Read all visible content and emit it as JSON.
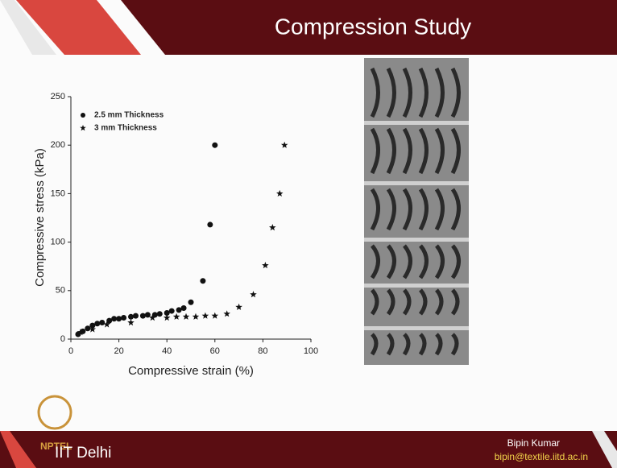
{
  "slide": {
    "title": "Compression Study",
    "logo_text": "NPTEL",
    "institute": "IIT Delhi",
    "author": "Bipin Kumar",
    "email": "bipin@textile.iitd.ac.in"
  },
  "chart_data": {
    "type": "scatter",
    "x_label": "Compressive strain (%)",
    "y_label": "Compressive stress (kPa)",
    "xlim": [
      0,
      100
    ],
    "ylim": [
      0,
      250
    ],
    "xticks": [
      0,
      20,
      40,
      60,
      80,
      100
    ],
    "yticks": [
      0,
      50,
      100,
      150,
      200,
      250
    ],
    "grid": false,
    "legend": "upper left",
    "series": [
      {
        "name": "2.5 mm Thickness",
        "color": "#111111",
        "marker": "circle",
        "x": [
          3,
          5,
          7,
          9,
          11,
          13,
          16,
          18,
          20,
          22,
          25,
          27,
          30,
          32,
          35,
          37,
          40,
          42,
          45,
          47,
          50,
          55,
          58,
          60
        ],
        "values": [
          5,
          8,
          11,
          14,
          16,
          17,
          19,
          21,
          21,
          22,
          23,
          24,
          24,
          25,
          25,
          26,
          27,
          29,
          30,
          32,
          38,
          60,
          118,
          200
        ]
      },
      {
        "name": "3 mm Thickness",
        "color": "#111111",
        "marker": "star",
        "x": [
          4,
          9,
          15,
          25,
          34,
          40,
          44,
          48,
          52,
          56,
          60,
          65,
          70,
          76,
          81,
          84,
          87,
          89
        ],
        "values": [
          7,
          10,
          15,
          17,
          22,
          22,
          23,
          23,
          23,
          24,
          24,
          26,
          33,
          46,
          76,
          115,
          150,
          200
        ]
      }
    ]
  }
}
